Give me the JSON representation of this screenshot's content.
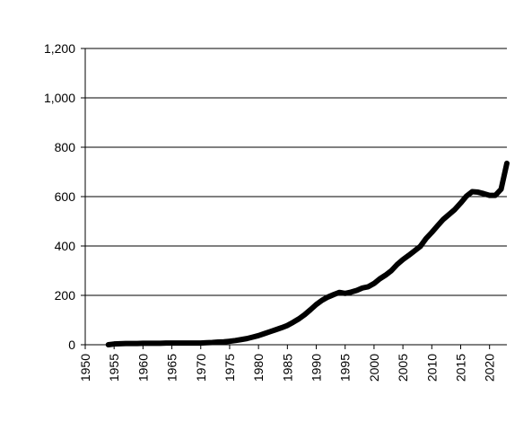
{
  "chart_data": {
    "type": "line",
    "title": "",
    "xlabel": "",
    "ylabel": "",
    "xlim": [
      1950,
      2023
    ],
    "ylim": [
      0,
      1200
    ],
    "grid": "horizontal",
    "y_ticks": [
      0,
      200,
      400,
      600,
      800,
      1000,
      1200
    ],
    "y_tick_labels": [
      "0",
      "200",
      "400",
      "600",
      "800",
      "1,000",
      "1,200"
    ],
    "x_ticks": [
      1950,
      1955,
      1960,
      1965,
      1970,
      1975,
      1980,
      1985,
      1990,
      1995,
      2000,
      2005,
      2010,
      2015,
      2020
    ],
    "x_tick_labels": [
      "1950",
      "1955",
      "1960",
      "1965",
      "1970",
      "1975",
      "1980",
      "1985",
      "1990",
      "1995",
      "2000",
      "2005",
      "2010",
      "2015",
      "2020"
    ],
    "line_color": "#000000",
    "series": [
      {
        "x": [
          1954,
          1955,
          1956,
          1957,
          1958,
          1959,
          1960,
          1961,
          1962,
          1963,
          1964,
          1965,
          1966,
          1967,
          1968,
          1969,
          1970,
          1971,
          1972,
          1973,
          1974,
          1975,
          1976,
          1977,
          1978,
          1979,
          1980,
          1981,
          1982,
          1983,
          1984,
          1985,
          1986,
          1987,
          1988,
          1989,
          1990,
          1991,
          1992,
          1993,
          1994,
          1995,
          1996,
          1997,
          1998,
          1999,
          2000,
          2001,
          2002,
          2003,
          2004,
          2005,
          2006,
          2007,
          2008,
          2009,
          2010,
          2011,
          2012,
          2013,
          2014,
          2015,
          2016,
          2017,
          2018,
          2019,
          2020,
          2021,
          2022,
          2023
        ],
        "values": [
          0,
          3,
          4,
          5,
          5,
          5,
          6,
          6,
          6,
          6,
          7,
          7,
          7,
          7,
          7,
          7,
          7,
          8,
          9,
          11,
          12,
          14,
          17,
          21,
          25,
          31,
          37,
          45,
          53,
          61,
          69,
          78,
          91,
          105,
          122,
          142,
          163,
          180,
          193,
          203,
          212,
          208,
          213,
          220,
          230,
          235,
          248,
          267,
          282,
          300,
          325,
          345,
          362,
          380,
          398,
          430,
          455,
          482,
          508,
          528,
          548,
          574,
          602,
          620,
          618,
          612,
          605,
          605,
          630,
          735
        ]
      }
    ]
  }
}
